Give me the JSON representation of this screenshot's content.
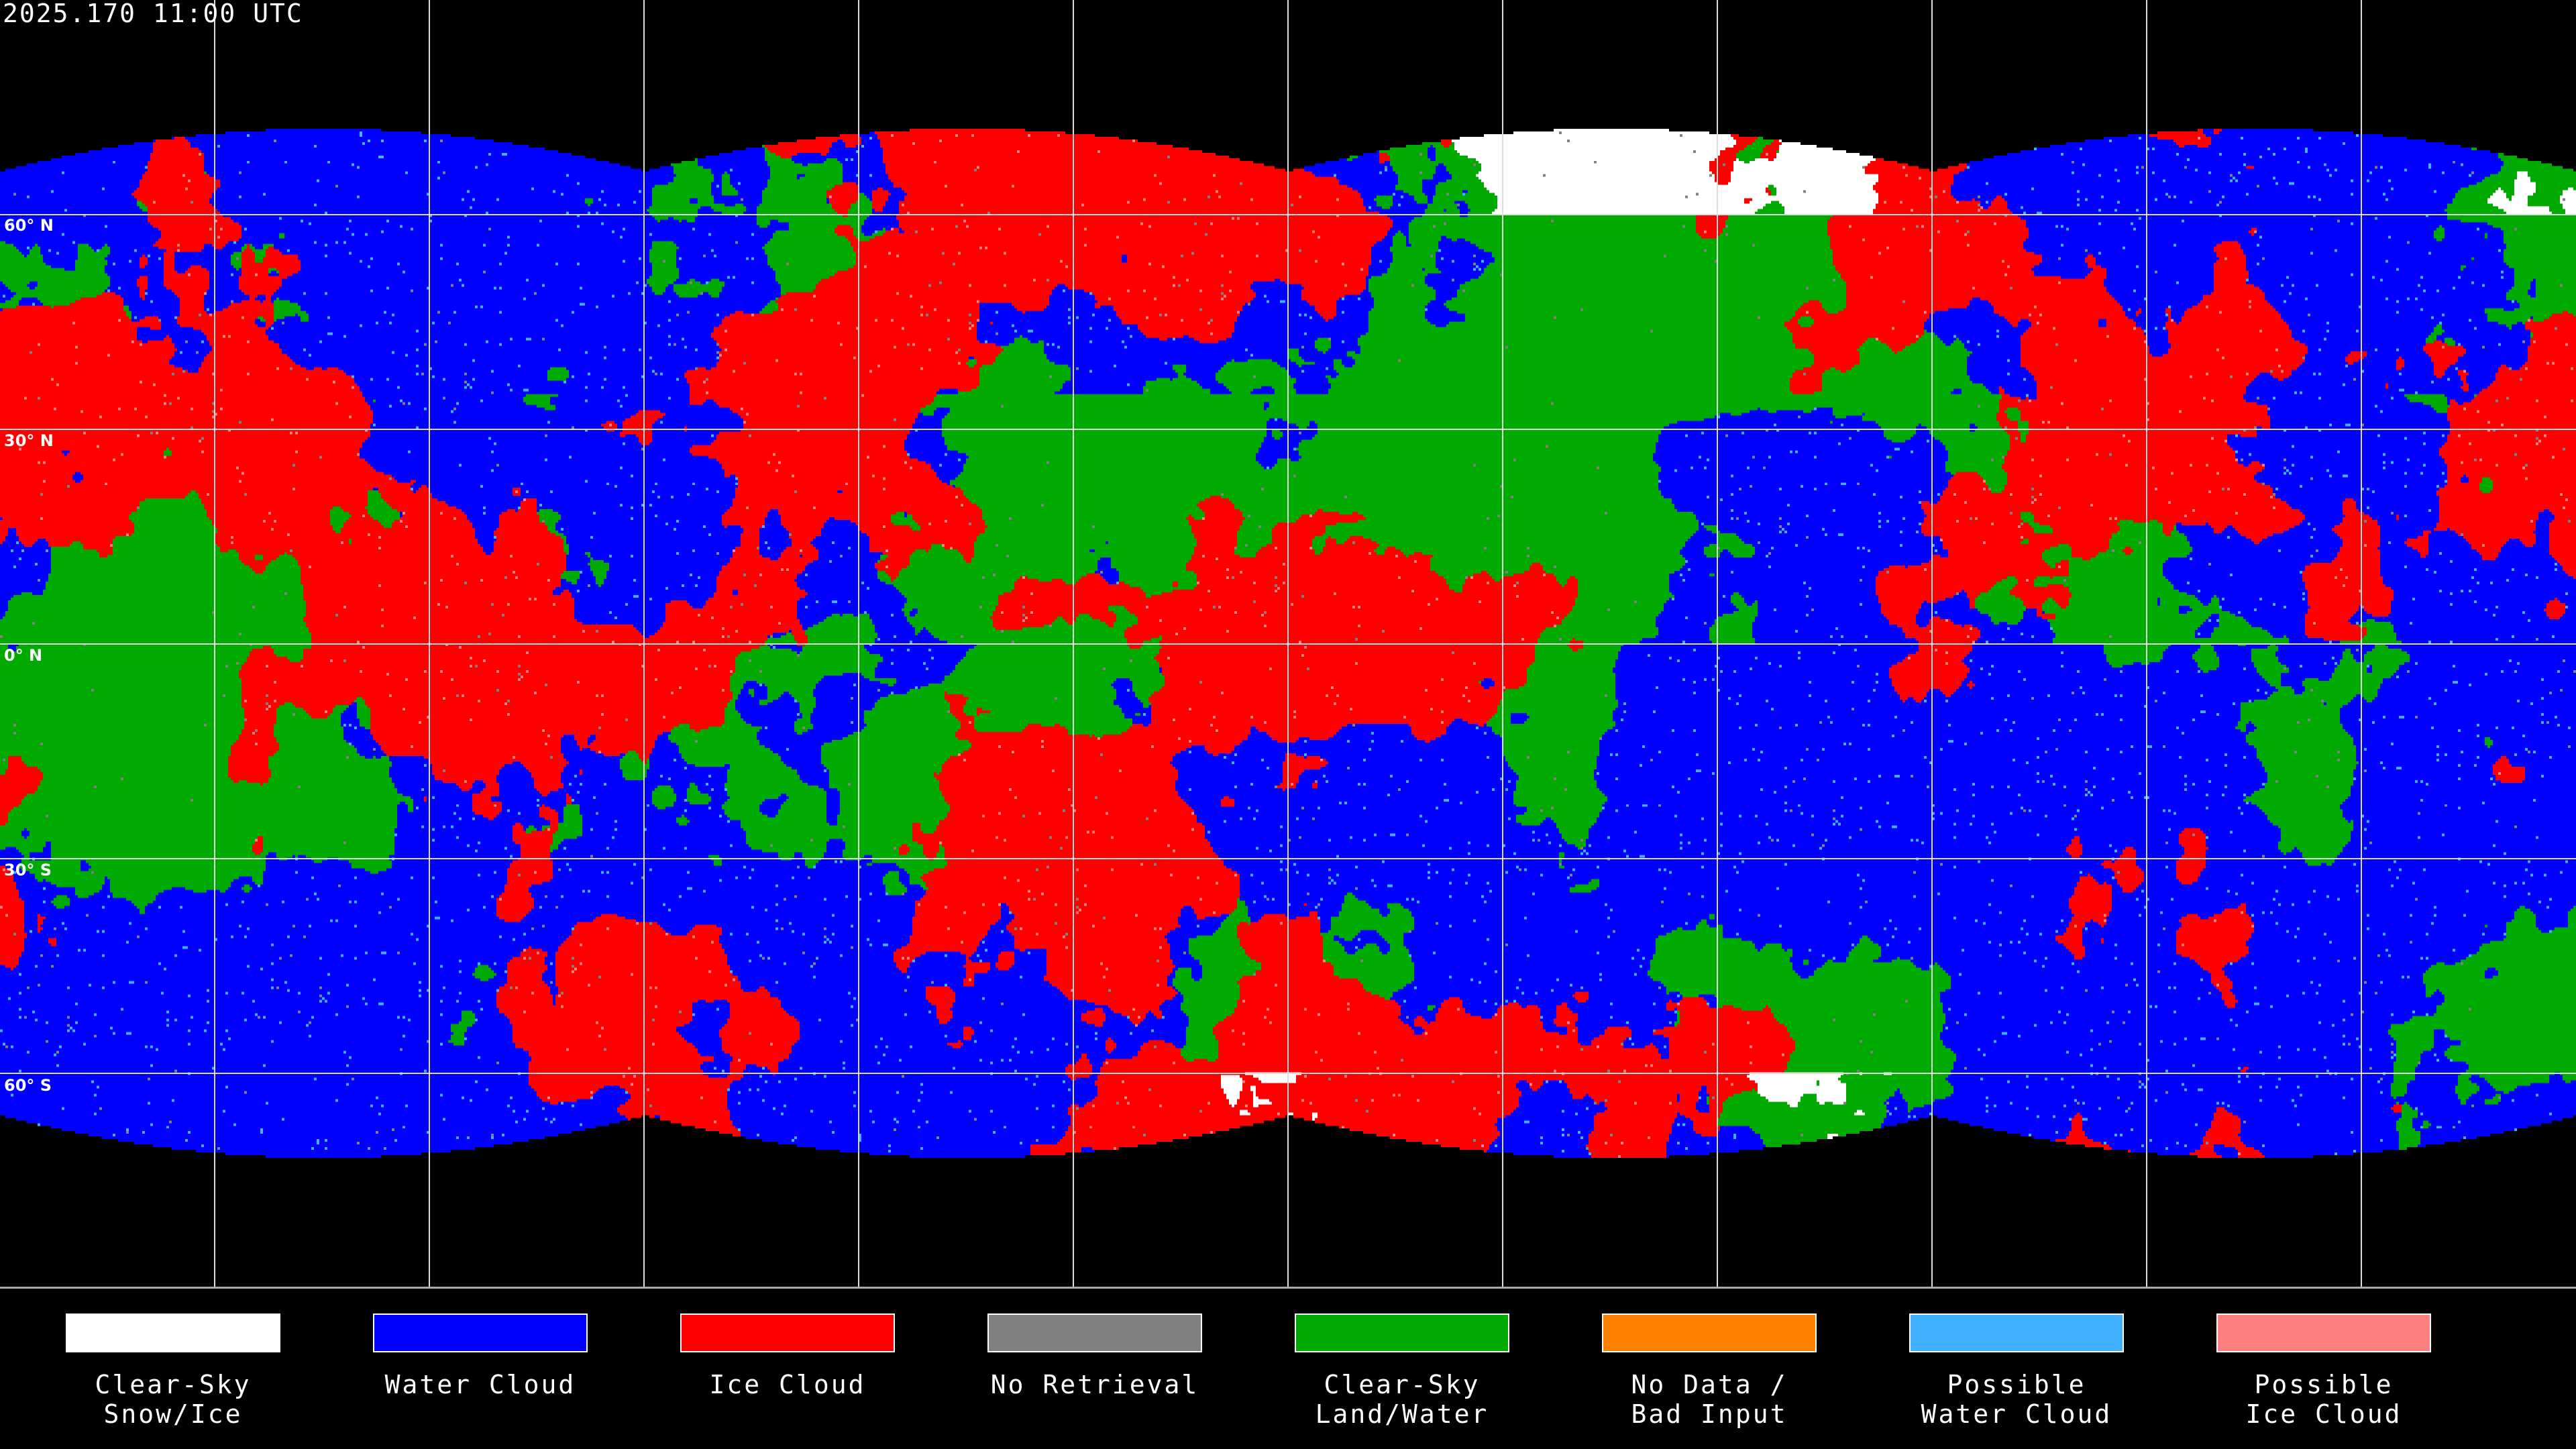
{
  "title": "2025.170 11:00 UTC",
  "map": {
    "projection": "equirectangular",
    "gridline_spacing_degrees": 30,
    "latitude_labels": [
      "60° N",
      "30° N",
      "0° N",
      "30° S",
      "60° S"
    ]
  },
  "legend": [
    {
      "label": "Clear-Sky\nSnow/Ice",
      "color": "#ffffff"
    },
    {
      "label": "Water Cloud",
      "color": "#0000ff"
    },
    {
      "label": "Ice Cloud",
      "color": "#ff0000"
    },
    {
      "label": "No Retrieval",
      "color": "#808080"
    },
    {
      "label": "Clear-Sky\nLand/Water",
      "color": "#00aa00"
    },
    {
      "label": "No Data /\nBad Input",
      "color": "#ff8000"
    },
    {
      "label": "Possible\nWater Cloud",
      "color": "#40b0ff"
    },
    {
      "label": "Possible\nIce Cloud",
      "color": "#ff8080"
    }
  ]
}
